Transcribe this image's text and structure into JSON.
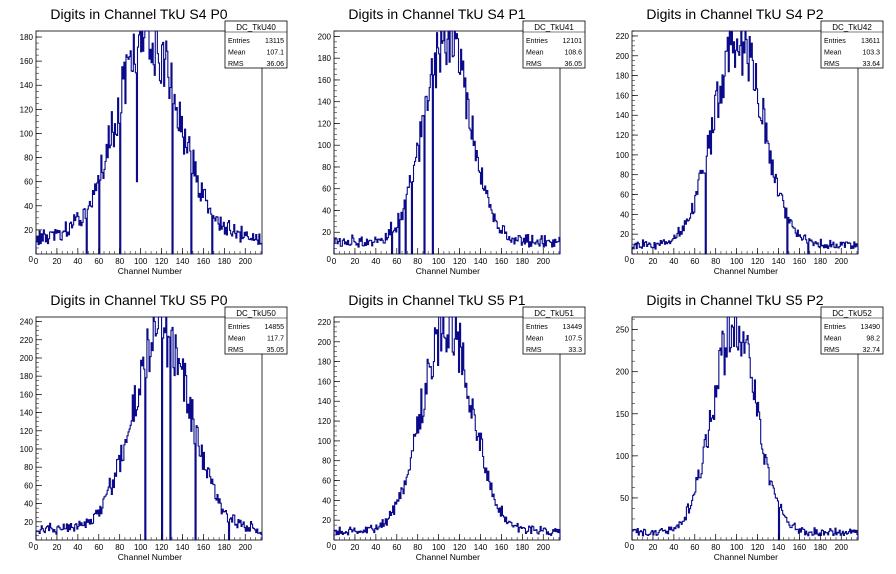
{
  "x_label": "Channel Number",
  "chart_data": [
    {
      "type": "histogram",
      "title": "Digits in Channel TkU S4 P0",
      "stats": {
        "name": "DC_TkU40",
        "entries": "13115",
        "mean": "107.1",
        "rms": "36.06"
      },
      "xlim": [
        0,
        216
      ],
      "ylim": [
        0,
        185
      ],
      "xticks": [
        0,
        20,
        40,
        60,
        80,
        100,
        120,
        140,
        160,
        180,
        200
      ],
      "yticks": [
        20,
        40,
        60,
        80,
        100,
        120,
        140,
        160,
        180
      ],
      "mean": 107,
      "sigma": 30,
      "peak": 168,
      "bins": 216,
      "dips": [
        [
          48,
          0
        ],
        [
          60,
          0
        ],
        [
          80,
          0
        ],
        [
          96,
          60
        ],
        [
          130,
          0
        ],
        [
          148,
          0
        ],
        [
          168,
          0
        ]
      ],
      "tail_level": 12
    },
    {
      "type": "histogram",
      "title": "Digits in Channel TkU S4 P1",
      "stats": {
        "name": "DC_TkU41",
        "entries": "12101",
        "mean": "108.6",
        "rms": "36.05"
      },
      "xlim": [
        0,
        216
      ],
      "ylim": [
        0,
        205
      ],
      "xticks": [
        0,
        20,
        40,
        60,
        80,
        100,
        120,
        140,
        160,
        180,
        200
      ],
      "yticks": [
        20,
        40,
        60,
        80,
        100,
        120,
        140,
        160,
        180,
        200
      ],
      "mean": 108,
      "sigma": 22,
      "peak": 188,
      "bins": 216,
      "dips": [
        [
          55,
          0
        ],
        [
          62,
          0
        ],
        [
          68,
          0
        ],
        [
          74,
          0
        ],
        [
          86,
          0
        ],
        [
          94,
          0
        ]
      ],
      "tail_level": 10
    },
    {
      "type": "histogram",
      "title": "Digits in Channel TkU S4 P2",
      "stats": {
        "name": "DC_TkU42",
        "entries": "13611",
        "mean": "103.3",
        "rms": "33.64"
      },
      "xlim": [
        0,
        216
      ],
      "ylim": [
        0,
        225
      ],
      "xticks": [
        0,
        20,
        40,
        60,
        80,
        100,
        120,
        140,
        160,
        180,
        200
      ],
      "yticks": [
        20,
        40,
        60,
        80,
        100,
        120,
        140,
        160,
        180,
        200,
        220
      ],
      "mean": 102,
      "sigma": 24,
      "peak": 205,
      "bins": 216,
      "dips": [
        [
          70,
          0
        ],
        [
          148,
          0
        ],
        [
          168,
          0
        ]
      ],
      "tail_level": 8
    },
    {
      "type": "histogram",
      "title": "Digits in Channel TkU S5 P0",
      "stats": {
        "name": "DC_TkU50",
        "entries": "14855",
        "mean": "117.7",
        "rms": "35.05"
      },
      "xlim": [
        0,
        216
      ],
      "ylim": [
        0,
        245
      ],
      "xticks": [
        0,
        20,
        40,
        60,
        80,
        100,
        120,
        140,
        160,
        180,
        200
      ],
      "yticks": [
        20,
        40,
        60,
        80,
        100,
        120,
        140,
        160,
        180,
        200,
        220,
        240
      ],
      "mean": 120,
      "sigma": 28,
      "peak": 215,
      "bins": 216,
      "dips": [
        [
          104,
          0
        ],
        [
          120,
          0
        ],
        [
          128,
          0
        ],
        [
          152,
          0
        ],
        [
          184,
          0
        ]
      ],
      "tail_level": 10
    },
    {
      "type": "histogram",
      "title": "Digits in Channel TkU S5 P1",
      "stats": {
        "name": "DC_TkU51",
        "entries": "13449",
        "mean": "107.5",
        "rms": "33.3"
      },
      "xlim": [
        0,
        216
      ],
      "ylim": [
        0,
        225
      ],
      "xticks": [
        0,
        20,
        40,
        60,
        80,
        100,
        120,
        140,
        160,
        180,
        200
      ],
      "yticks": [
        20,
        40,
        60,
        80,
        100,
        120,
        140,
        160,
        180,
        200,
        220
      ],
      "mean": 108,
      "sigma": 24,
      "peak": 210,
      "bins": 216,
      "dips": [],
      "tail_level": 8
    },
    {
      "type": "histogram",
      "title": "Digits in Channel TkU S5 P2",
      "stats": {
        "name": "DC_TkU52",
        "entries": "13490",
        "mean": "98.2",
        "rms": "32.74"
      },
      "xlim": [
        0,
        216
      ],
      "ylim": [
        0,
        265
      ],
      "xticks": [
        0,
        20,
        40,
        60,
        80,
        100,
        120,
        140,
        160,
        180,
        200
      ],
      "yticks": [
        50,
        100,
        150,
        200,
        250
      ],
      "mean": 98,
      "sigma": 21,
      "peak": 245,
      "bins": 216,
      "dips": [
        [
          140,
          0
        ]
      ],
      "tail_level": 8
    }
  ]
}
